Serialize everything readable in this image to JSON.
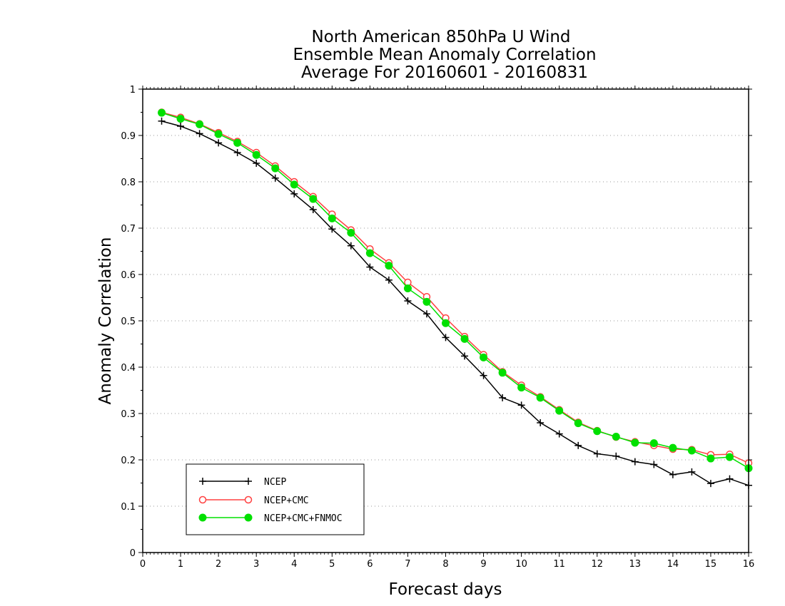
{
  "chart_data": {
    "type": "line",
    "title_lines": [
      "North American 850hPa U Wind",
      "Ensemble Mean Anomaly Correlation",
      "Average For 20160601 - 20160831"
    ],
    "xlabel": "Forecast days",
    "ylabel": "Anomaly Correlation",
    "xlim": [
      0,
      16
    ],
    "ylim": [
      0,
      1
    ],
    "xticks": [
      0,
      1,
      2,
      3,
      4,
      5,
      6,
      7,
      8,
      9,
      10,
      11,
      12,
      13,
      14,
      15,
      16
    ],
    "yticks": [
      0,
      0.1,
      0.2,
      0.3,
      0.4,
      0.5,
      0.6,
      0.7,
      0.8,
      0.9,
      1
    ],
    "ytick_labels": [
      "0",
      "0.1",
      "0.2",
      "0.3",
      "0.4",
      "0.5",
      "0.6",
      "0.7",
      "0.8",
      "0.9",
      "1"
    ],
    "grid": "horizontal-dotted",
    "legend_position": "bottom-left",
    "x": [
      0.5,
      1,
      1.5,
      2,
      2.5,
      3,
      3.5,
      4,
      4.5,
      5,
      5.5,
      6,
      6.5,
      7,
      7.5,
      8,
      8.5,
      9,
      9.5,
      10,
      10.5,
      11,
      11.5,
      12,
      12.5,
      13,
      13.5,
      14,
      14.5,
      15,
      15.5,
      16
    ],
    "series": [
      {
        "name": "NCEP",
        "color": "#000000",
        "marker": "plus",
        "values": [
          0.931,
          0.92,
          0.904,
          0.884,
          0.863,
          0.84,
          0.808,
          0.774,
          0.74,
          0.698,
          0.662,
          0.616,
          0.588,
          0.543,
          0.515,
          0.464,
          0.424,
          0.382,
          0.334,
          0.318,
          0.28,
          0.256,
          0.231,
          0.213,
          0.208,
          0.196,
          0.19,
          0.168,
          0.174,
          0.149,
          0.159,
          0.145
        ]
      },
      {
        "name": "NCEP+CMC",
        "color": "#ff4040",
        "marker": "open-circle",
        "values": [
          0.95,
          0.939,
          0.925,
          0.906,
          0.887,
          0.863,
          0.834,
          0.8,
          0.768,
          0.73,
          0.696,
          0.655,
          0.625,
          0.583,
          0.552,
          0.506,
          0.466,
          0.427,
          0.39,
          0.361,
          0.336,
          0.308,
          0.281,
          0.263,
          0.249,
          0.239,
          0.231,
          0.223,
          0.222,
          0.211,
          0.212,
          0.193
        ]
      },
      {
        "name": "NCEP+CMC+FNMOC",
        "color": "#00e000",
        "marker": "filled-circle",
        "values": [
          0.949,
          0.936,
          0.924,
          0.903,
          0.884,
          0.858,
          0.829,
          0.794,
          0.763,
          0.721,
          0.69,
          0.646,
          0.619,
          0.57,
          0.541,
          0.495,
          0.461,
          0.421,
          0.388,
          0.356,
          0.334,
          0.306,
          0.279,
          0.262,
          0.25,
          0.237,
          0.236,
          0.226,
          0.22,
          0.203,
          0.206,
          0.182
        ]
      }
    ]
  }
}
